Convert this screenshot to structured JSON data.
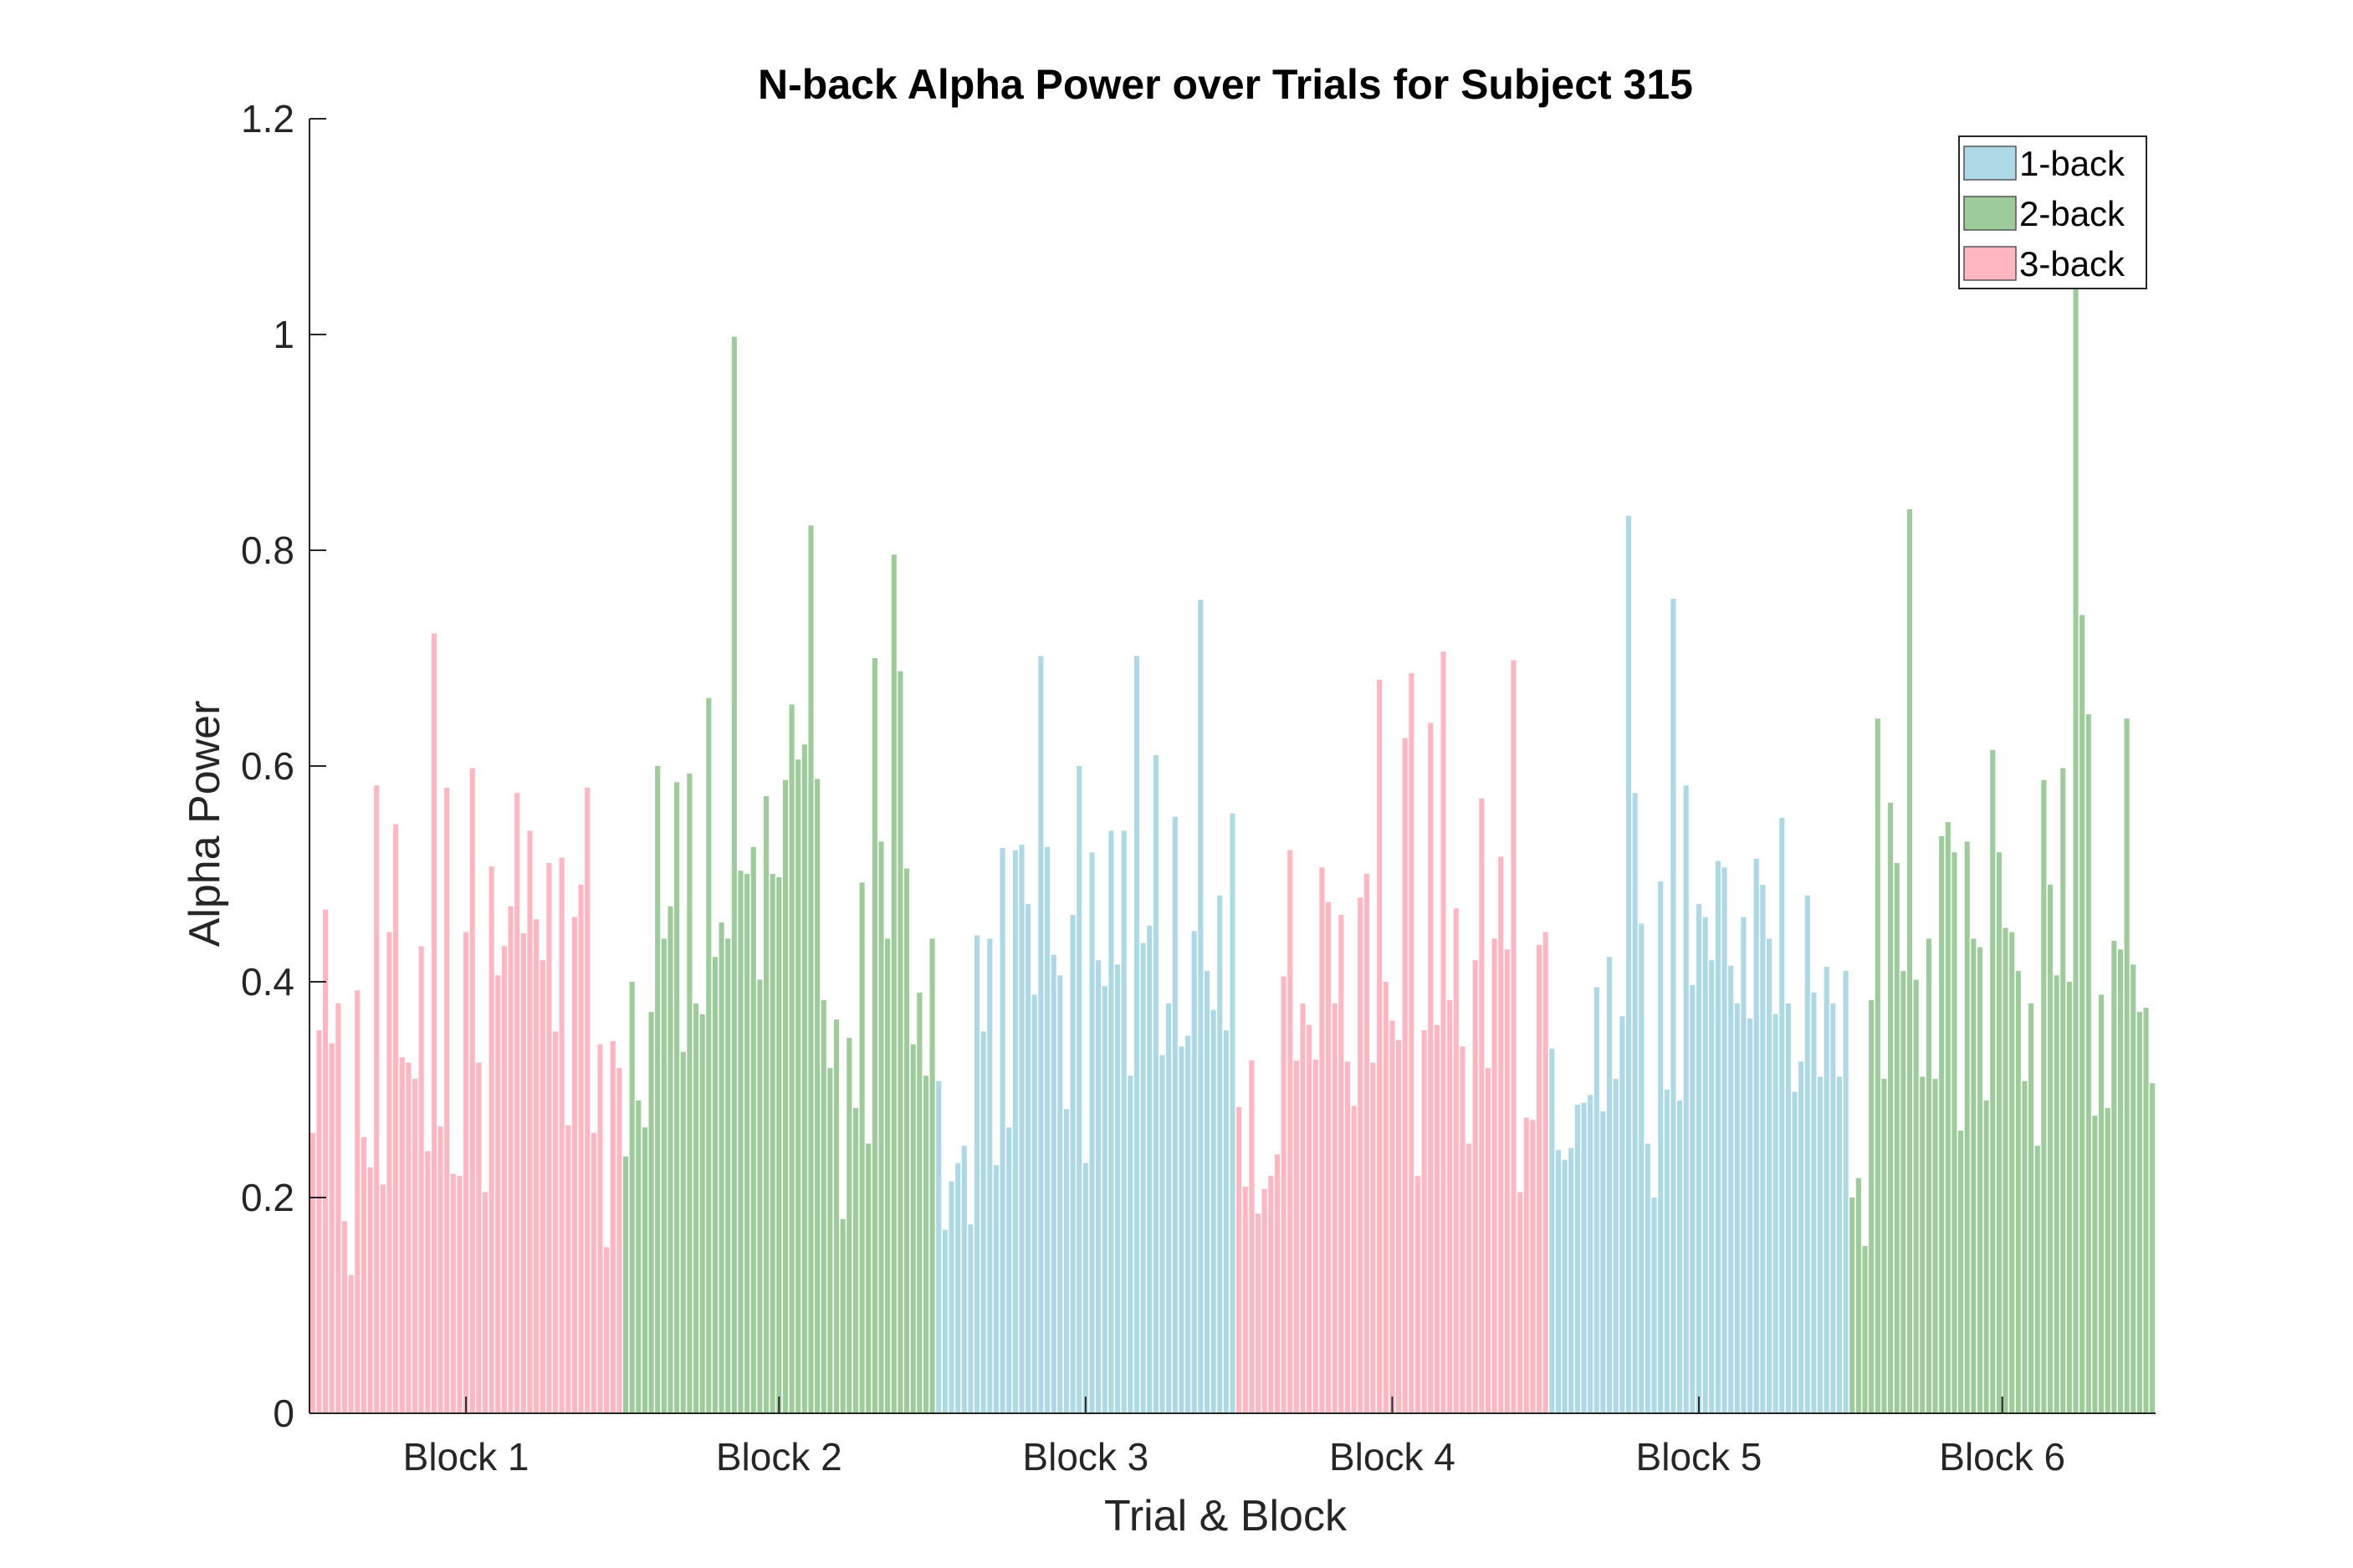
{
  "chart_data": {
    "type": "bar",
    "title": "N-back Alpha Power over Trials for Subject 315",
    "xlabel": "Trial & Block",
    "ylabel": "Alpha Power",
    "ylim": [
      0,
      1.2
    ],
    "yticks": [
      0,
      0.2,
      0.4,
      0.6,
      0.8,
      1,
      1.2
    ],
    "ytick_labels": [
      "0",
      "0.2",
      "0.4",
      "0.6",
      "0.8",
      "1",
      "1.2"
    ],
    "grid": false,
    "legend": {
      "placement": "top-right",
      "entries": [
        {
          "label": "1-back",
          "color": "#add8e6"
        },
        {
          "label": "2-back",
          "color": "#9dcc9a"
        },
        {
          "label": "3-back",
          "color": "#ffb6c1"
        }
      ]
    },
    "blocks": [
      {
        "label": "Block 1",
        "condition": "3-back",
        "values": [
          0.26,
          0.355,
          0.467,
          0.343,
          0.38,
          0.178,
          0.128,
          0.392,
          0.256,
          0.228,
          0.582,
          0.212,
          0.446,
          0.546,
          0.33,
          0.325,
          0.31,
          0.433,
          0.243,
          0.723,
          0.266,
          0.58,
          0.222,
          0.22,
          0.446,
          0.598,
          0.325,
          0.205,
          0.507,
          0.406,
          0.433,
          0.47,
          0.575,
          0.445,
          0.54,
          0.458,
          0.42,
          0.51,
          0.354,
          0.515,
          0.267,
          0.46,
          0.49,
          0.58,
          0.26,
          0.342,
          0.154,
          0.345,
          0.32
        ]
      },
      {
        "label": "Block 2",
        "condition": "2-back",
        "values": [
          0.238,
          0.4,
          0.29,
          0.265,
          0.372,
          0.6,
          0.44,
          0.47,
          0.585,
          0.335,
          0.593,
          0.38,
          0.37,
          0.663,
          0.423,
          0.455,
          0.44,
          0.998,
          0.503,
          0.5,
          0.525,
          0.402,
          0.572,
          0.5,
          0.497,
          0.587,
          0.657,
          0.606,
          0.62,
          0.823,
          0.588,
          0.383,
          0.32,
          0.365,
          0.18,
          0.348,
          0.283,
          0.492,
          0.25,
          0.7,
          0.53,
          0.44,
          0.796,
          0.688,
          0.505,
          0.342,
          0.39,
          0.313,
          0.44
        ]
      },
      {
        "label": "Block 3",
        "condition": "1-back",
        "values": [
          0.308,
          0.17,
          0.215,
          0.232,
          0.248,
          0.175,
          0.443,
          0.354,
          0.44,
          0.23,
          0.524,
          0.265,
          0.522,
          0.527,
          0.472,
          0.388,
          0.702,
          0.525,
          0.425,
          0.406,
          0.282,
          0.462,
          0.6,
          0.232,
          0.52,
          0.42,
          0.396,
          0.54,
          0.416,
          0.54,
          0.313,
          0.702,
          0.436,
          0.452,
          0.61,
          0.332,
          0.38,
          0.553,
          0.34,
          0.35,
          0.447,
          0.754,
          0.41,
          0.374,
          0.48,
          0.355,
          0.556
        ]
      },
      {
        "label": "Block 4",
        "condition": "3-back",
        "values": [
          0.284,
          0.21,
          0.327,
          0.185,
          0.208,
          0.22,
          0.24,
          0.405,
          0.522,
          0.327,
          0.38,
          0.36,
          0.328,
          0.506,
          0.474,
          0.38,
          0.462,
          0.326,
          0.285,
          0.478,
          0.5,
          0.325,
          0.68,
          0.4,
          0.364,
          0.346,
          0.626,
          0.686,
          0.22,
          0.355,
          0.64,
          0.36,
          0.706,
          0.383,
          0.468,
          0.34,
          0.25,
          0.42,
          0.57,
          0.32,
          0.44,
          0.516,
          0.43,
          0.698,
          0.205,
          0.274,
          0.272,
          0.434,
          0.446
        ]
      },
      {
        "label": "Block 5",
        "condition": "1-back",
        "values": [
          0.338,
          0.244,
          0.235,
          0.246,
          0.286,
          0.288,
          0.295,
          0.395,
          0.28,
          0.423,
          0.31,
          0.368,
          0.832,
          0.575,
          0.454,
          0.25,
          0.2,
          0.493,
          0.3,
          0.755,
          0.29,
          0.582,
          0.397,
          0.472,
          0.46,
          0.42,
          0.512,
          0.506,
          0.415,
          0.38,
          0.46,
          0.366,
          0.514,
          0.49,
          0.44,
          0.37,
          0.552,
          0.38,
          0.298,
          0.326,
          0.48,
          0.39,
          0.312,
          0.414,
          0.38,
          0.312,
          0.41
        ]
      },
      {
        "label": "Block 6",
        "condition": "2-back",
        "values": [
          0.2,
          0.218,
          0.155,
          0.383,
          0.644,
          0.31,
          0.566,
          0.51,
          0.41,
          0.838,
          0.402,
          0.312,
          0.44,
          0.31,
          0.535,
          0.548,
          0.52,
          0.262,
          0.53,
          0.44,
          0.432,
          0.29,
          0.615,
          0.52,
          0.45,
          0.446,
          0.41,
          0.308,
          0.38,
          0.248,
          0.587,
          0.49,
          0.406,
          0.598,
          0.4,
          1.045,
          0.74,
          0.648,
          0.276,
          0.388,
          0.283,
          0.438,
          0.43,
          0.644,
          0.416,
          0.372,
          0.376,
          0.306
        ]
      }
    ]
  }
}
